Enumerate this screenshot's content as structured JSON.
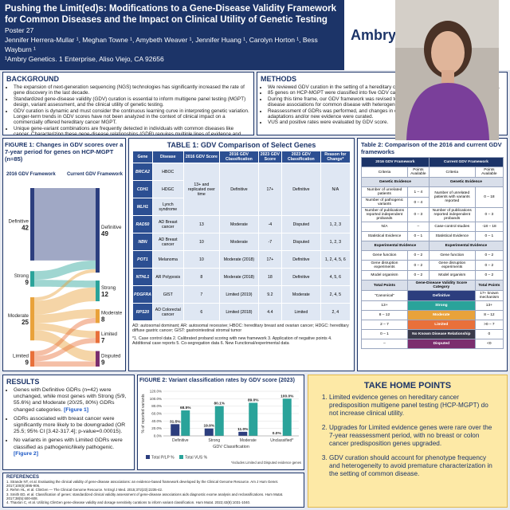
{
  "header": {
    "title": "Pushing the Limit(ed)s: Modifications to a Gene-Disease Validity Framework for Common Diseases and the Impact on Clinical Utility of Genetic Testing",
    "poster": "Poster 27",
    "authors": "Jennifer Herrera-Mullar ¹, Meghan Towne ¹, Amybeth Weaver ¹, Jennifer Huang ¹, Carolyn Horton ¹, Bess Wayburn ¹",
    "affiliation": "¹Ambry Genetics. 1 Enterprise, Aliso Viejo, CA 92656",
    "logo": "Ambry Genetics"
  },
  "background": {
    "title": "BACKGROUND",
    "bullets": [
      "The expansion of next-generation sequencing (NGS) technologies has significantly increased the rate of gene discovery in the last decade.",
      "Standardized gene-disease validity (GDV) curation is essential to inform multigene panel testing (MGPT) design, variant assessment, and the clinical utility of genetic testing.",
      "GDV curation is dynamic and must consider the continuous learning curve in interpreting genetic variation. Longer-term trends in GDV scores have not been analyzed in the context of clinical impact on a commercially offered hereditary cancer MGPT.",
      "Unique gene-variant combinations are frequently detected in individuals with common diseases like cancer. Characterizing these gene-disease relationships (GDR) requires multiple lines of evidence and large population datasets to avoid premature characterization."
    ]
  },
  "methods": {
    "title": "METHODS",
    "bullets": [
      "We reviewed GDV curation in the setting of a hereditary cancer MGPT over a 7-year period (2016-2023).",
      "85 genes on HCP-MGPT were classified into five GDV categories at the time of panel addition.",
      "During this time frame, our GDV framework was revised to include scoring rules for evaluating gene-disease associations for common disease with heterogeneous etiologies.",
      "Reassessment of GDRs was performed, and changes in classifications due to GDV framework adaptations and/or new evidence were curated.",
      "VUS and positive rates were evaluated by GDV score."
    ]
  },
  "chart_data": [
    {
      "type": "sankey",
      "title": "FIGURE 1: Changes in GDV scores over a 7-year period for genes on HCP-MGPT (n=85)",
      "left_label": "2016 GDV Framework",
      "right_label": "Current GDV Framework",
      "left_nodes": [
        {
          "name": "Definitive",
          "value": 42,
          "color": "#2c3e7e",
          "flows": [
            42,
            0,
            0,
            0,
            0
          ]
        },
        {
          "name": "Strong",
          "value": 9,
          "color": "#2aa39a",
          "flows": [
            5,
            4,
            0,
            0,
            0
          ]
        },
        {
          "name": "Moderate",
          "value": 25,
          "color": "#e9a23b",
          "flows": [
            2,
            8,
            5,
            4,
            6
          ]
        },
        {
          "name": "Limited",
          "value": 9,
          "color": "#e8703a",
          "flows": [
            0,
            0,
            3,
            3,
            3
          ]
        }
      ],
      "right_nodes": [
        {
          "name": "Definitive",
          "value": 49,
          "color": "#2c3e7e"
        },
        {
          "name": "Strong",
          "value": 12,
          "color": "#2aa39a"
        },
        {
          "name": "Moderate",
          "value": 8,
          "color": "#e9a23b"
        },
        {
          "name": "Limited",
          "value": 7,
          "color": "#e8703a"
        },
        {
          "name": "Disputed",
          "value": 9,
          "color": "#7b2e6e"
        }
      ]
    },
    {
      "type": "bar",
      "title": "FIGURE 2: Variant classification rates by GDV score (2023)",
      "categories": [
        "Definitive",
        "Strong",
        "Moderate",
        "Unclassified*"
      ],
      "series": [
        {
          "name": "Total P/LP %",
          "color": "#2c3e7e",
          "values": [
            31.5,
            19.9,
            11.0,
            0.0
          ],
          "value_labels": [
            "31.5%",
            "19.9%",
            "11.0%",
            "0.0%"
          ]
        },
        {
          "name": "Total VUS %",
          "color": "#2aa39a",
          "values": [
            68.5,
            80.1,
            89.0,
            100.0
          ],
          "value_labels": [
            "68.5%",
            "80.1%",
            "89.0%",
            "100.0%"
          ]
        }
      ],
      "ylim": [
        0,
        120
      ],
      "yticks": [
        {
          "value": 0,
          "label": "0.0%"
        },
        {
          "value": 20,
          "label": "20.0%"
        },
        {
          "value": 40,
          "label": "40.0%"
        },
        {
          "value": 60,
          "label": "60.0%"
        },
        {
          "value": 80,
          "label": "80.0%"
        },
        {
          "value": 100,
          "label": "100.0%"
        },
        {
          "value": 120,
          "label": "120.0%"
        }
      ],
      "ylabel": "% of reported variants",
      "xlabel": "GDV Classification",
      "note": "*includes Limited and Disputed evidence genes"
    }
  ],
  "table1": {
    "title": "TABLE 1: GDV Comparison of Select Genes",
    "columns": [
      "Gene",
      "Disease",
      "2016 GDV Score",
      "2016 GDV Classification",
      "2023 GDV Score",
      "2023 GDV Classification",
      "Reason for Change*"
    ],
    "rows": [
      [
        "BRCA2",
        "HBOC",
        "13+ and replicated over time",
        "Definitive",
        "17+",
        "Definitive",
        "N/A"
      ],
      [
        "CDH1",
        "HDGC"
      ],
      [
        "MLH1",
        "Lynch syndrome"
      ],
      [
        "RAD50",
        "AD Breast cancer",
        "13",
        "Moderate",
        "-4",
        "Disputed",
        "1, 2, 3"
      ],
      [
        "NBN",
        "AD Breast cancer",
        "10",
        "Moderate",
        "-7",
        "Disputed",
        "1, 2, 3"
      ],
      [
        "POT1",
        "Melanoma",
        "10",
        "Moderate (2018)",
        "17+",
        "Definitive",
        "1, 2, 4, 5, 6"
      ],
      [
        "NTHL1",
        "AR Polyposis",
        "8",
        "Moderate (2018)",
        "18",
        "Definitive",
        "4, 5, 6"
      ],
      [
        "PDGFRA",
        "GIST",
        "7",
        "Limited (2019)",
        "9.2",
        "Moderate",
        "2, 4, 5"
      ],
      [
        "RPS20",
        "AD Colorectal cancer",
        "6",
        "Limited (2018)",
        "4.4",
        "Limited",
        "2, 4"
      ]
    ],
    "abbreviations": "AD: autosomal dominant; AR: autosomal recessive; HBOC: hereditary breast and ovarian cancer; HDGC: hereditary diffuse gastric cancer; GIST: gastrointestinal stromal tumor",
    "footnote": "*1. Case control data 2. Calibrated proband scoring with new framework 3. Application of negative points 4. Additional case reports 5. Co-segregation data 6. New Functional/experimental data"
  },
  "table2": {
    "title": "Table 2: Comparison of the 2016 and current GDV frameworks",
    "header": [
      "2016 GDV Framework",
      "Current GDV Framework"
    ],
    "subheader": [
      "Criteria",
      "Points Available",
      "Criteria",
      "Points Available"
    ],
    "genetic_heading": [
      "Genetic Evidence",
      "Genetic Evidence"
    ],
    "genetic_rows": [
      [
        "Number of unrelated patients",
        "1 – 4",
        "Number of unrelated patients with variants reported",
        "0 – 18"
      ],
      [
        "Number of pathogenic variants",
        "0 – 4"
      ],
      [
        "Number of publications reported independent probands",
        "0 – 3",
        "Number of publications reported independent probands",
        "0 – 3"
      ],
      [
        "N/A",
        "–",
        "Case-control studies",
        "-18 – 18"
      ],
      [
        "Statistical Evidence",
        "0 – 1",
        "Statistical Evidence",
        "0 – 1"
      ]
    ],
    "experimental_heading": [
      "Experimental Evidence",
      "Experimental Evidence"
    ],
    "experimental_rows": [
      [
        "Gene function",
        "0 – 2",
        "Gene function",
        "0 – 2"
      ],
      [
        "Gene disruption experiments",
        "0 – 2",
        "Gene disruption experiments",
        "0 – 2"
      ],
      [
        "Model organism",
        "0 – 2",
        "Model organism",
        "0 – 2"
      ]
    ],
    "score_header": [
      "Total Points",
      "Gene-Disease Validity Score Category",
      "Total Points"
    ],
    "score_rows": [
      [
        "“Canonical”",
        "Definitive",
        "17+ known mechanism"
      ],
      [
        "13+",
        "Strong",
        "13+"
      ],
      [
        "8 – 12",
        "Moderate",
        "8 – 12"
      ],
      [
        "2 – 7",
        "Limited",
        ">0 – 7"
      ],
      [
        "0 – 1",
        "No Known Disease Relationship",
        "0"
      ],
      [
        "–",
        "Disputed",
        "<0"
      ]
    ],
    "score_colors": [
      "#2c3e7e",
      "#2aa39a",
      "#e9a23b",
      "#e8703a",
      "#3a3a4a",
      "#7b2e6e"
    ]
  },
  "results": {
    "title": "RESULTS",
    "bullets": [
      {
        "text": "Genes with Definitive GDRs (n=42) were unchanged, while most genes with Strong (5/9, 55.6%) and Moderate (20/25, 80%) GDRs changed categories.",
        "ref": "[Figure 1]"
      },
      {
        "text": "GDRs associated with breast cancer were significantly more likely to be downgraded (OR 25.5; 95% CI [3.42-317.4]; p-value=0.00015)."
      },
      {
        "text": "No variants in genes with Limited GDRs were classified as pathogenic/likely pathogenic.",
        "ref": "[Figure 2]"
      }
    ]
  },
  "take_home": {
    "title": "TAKE HOME POINTS",
    "points": [
      "Limited evidence genes on hereditary cancer predisposition multigene panel testing (HCP-MGPT) do not increase clinical utility.",
      "Upgrades for Limited evidence genes were rare over the 7-year reassessment period, with no breast or colon cancer predisposition genes upgraded.",
      "GDV curation should account for phenotype frequency and heterogeneity to avoid premature characterization in the setting of common disease."
    ]
  },
  "references": {
    "title": "REFERENCES",
    "items": [
      "1. Strande NT, et al. Evaluating the clinical validity of gene-disease associations: an evidence-based framework developed by the Clinical Genome Resource. Am J Hum Genet. 2017;100(6):895-906.",
      "2. Rehm HL, et al. ClinGen — The Clinical Genome Resource. N Engl J Med. 2015;372(23):2235-42.",
      "3. Smith ED, et al. Classification of genes: standardized clinical validity assessment of gene-disease associations aids diagnostic exome analysis and reclassifications. Hum Mutat. 2017;38(5):600-608.",
      "4. Thaxton C, et al. Utilizing ClinGen gene-disease validity and dosage sensitivity curations to inform variant classification. Hum Mutat. 2022;43(8):1031-1040."
    ]
  }
}
